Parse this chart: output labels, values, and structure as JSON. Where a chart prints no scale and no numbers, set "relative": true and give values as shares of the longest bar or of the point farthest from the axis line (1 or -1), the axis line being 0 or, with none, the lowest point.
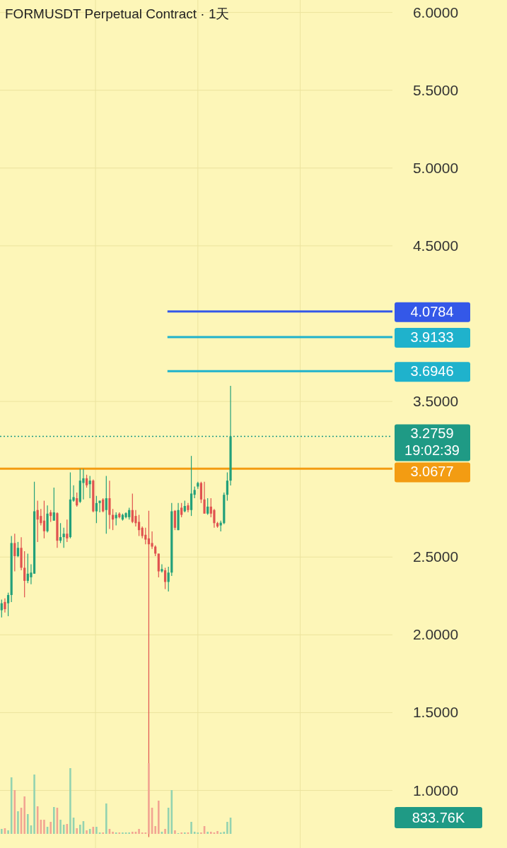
{
  "chart_data": [
    {
      "type": "candlestick",
      "title": "FORMUSDT Perpetual Contract · 1天",
      "categories": [
        null,
        null,
        null,
        null,
        null,
        null,
        null,
        null,
        null,
        null,
        null,
        null,
        null,
        null,
        null,
        null,
        null,
        null,
        null,
        null,
        null,
        null,
        null,
        null,
        null,
        null,
        null,
        null,
        null,
        null,
        null,
        null,
        null,
        null,
        null,
        null,
        null,
        null,
        null,
        null,
        null,
        null,
        null,
        null,
        null,
        null,
        null,
        null,
        null,
        null,
        null,
        null,
        null,
        null,
        null,
        null,
        null,
        null,
        null,
        null,
        null,
        null,
        null,
        null,
        null,
        null,
        null,
        null,
        null,
        null,
        null,
        null,
        null,
        null,
        null,
        null,
        null,
        null,
        null,
        null,
        null,
        null,
        null,
        null,
        null,
        null,
        null,
        null,
        null,
        null,
        null,
        null,
        null,
        null,
        null,
        null,
        null,
        null,
        null,
        null,
        null,
        null,
        null,
        null,
        null,
        null,
        null,
        null,
        null,
        null,
        null,
        null,
        null,
        null,
        null,
        null,
        null,
        null,
        null,
        null
      ],
      "ohlc": [
        [
          2.158,
          2.226,
          2.112,
          2.203
        ],
        [
          2.211,
          2.234,
          2.143,
          2.165
        ],
        [
          2.203,
          2.271,
          2.12,
          2.256
        ],
        [
          2.256,
          2.635,
          2.211,
          2.59
        ],
        [
          2.59,
          2.65,
          2.408,
          2.506
        ],
        [
          2.506,
          2.597,
          2.499,
          2.559
        ],
        [
          2.559,
          2.627,
          2.415,
          2.431
        ],
        [
          2.431,
          2.537,
          2.241,
          2.347
        ],
        [
          2.347,
          2.522,
          2.332,
          2.393
        ],
        [
          2.37,
          2.453,
          2.325,
          2.4
        ],
        [
          2.393,
          2.984,
          2.393,
          2.794
        ],
        [
          2.802,
          2.862,
          2.597,
          2.741
        ],
        [
          2.764,
          2.809,
          2.703,
          2.718
        ],
        [
          2.734,
          2.862,
          2.62,
          2.666
        ],
        [
          2.666,
          2.832,
          2.658,
          2.779
        ],
        [
          2.787,
          2.802,
          2.726,
          2.764
        ],
        [
          2.734,
          2.946,
          2.734,
          2.787
        ],
        [
          2.782,
          2.787,
          2.559,
          2.605
        ],
        [
          2.605,
          2.718,
          2.59,
          2.628
        ],
        [
          2.628,
          2.688,
          2.559,
          2.65
        ],
        [
          2.65,
          2.741,
          2.597,
          2.62
        ],
        [
          2.628,
          3.044,
          2.62,
          2.87
        ],
        [
          2.862,
          2.961,
          2.855,
          2.885
        ],
        [
          2.878,
          2.915,
          2.824,
          2.832
        ],
        [
          2.855,
          3.067,
          2.847,
          2.991
        ],
        [
          2.976,
          3.067,
          2.87,
          3.006
        ],
        [
          3.006,
          3.029,
          2.946,
          2.961
        ],
        [
          2.968,
          3.021,
          2.878,
          2.991
        ],
        [
          2.991,
          2.999,
          2.787,
          2.794
        ],
        [
          2.794,
          2.893,
          2.718,
          2.847
        ],
        [
          2.847,
          2.862,
          2.787,
          2.862
        ],
        [
          2.87,
          2.878,
          2.787,
          2.794
        ],
        [
          2.802,
          3.021,
          2.65,
          2.878
        ],
        [
          2.878,
          2.991,
          2.681,
          2.771
        ],
        [
          2.771,
          2.809,
          2.673,
          2.741
        ],
        [
          2.749,
          2.787,
          2.703,
          2.771
        ],
        [
          2.779,
          2.787,
          2.749,
          2.756
        ],
        [
          2.741,
          2.779,
          2.734,
          2.771
        ],
        [
          2.756,
          2.787,
          2.749,
          2.782
        ],
        [
          2.756,
          2.817,
          2.741,
          2.802
        ],
        [
          2.802,
          2.908,
          2.718,
          2.726
        ],
        [
          2.764,
          2.802,
          2.696,
          2.718
        ],
        [
          2.726,
          2.771,
          2.635,
          2.673
        ],
        [
          2.688,
          2.696,
          2.62,
          2.635
        ],
        [
          2.643,
          2.688,
          2.582,
          2.612
        ],
        [
          2.62,
          2.797,
          0.7,
          2.582
        ],
        [
          2.59,
          2.665,
          2.552,
          2.567
        ],
        [
          2.567,
          2.575,
          2.506,
          2.522
        ],
        [
          2.522,
          2.522,
          2.37,
          2.408
        ],
        [
          2.408,
          2.453,
          2.4,
          2.423
        ],
        [
          2.415,
          2.431,
          2.294,
          2.34
        ],
        [
          2.34,
          2.438,
          2.279,
          2.4
        ],
        [
          2.4,
          2.847,
          2.378,
          2.794
        ],
        [
          2.797,
          2.802,
          2.673,
          2.688
        ],
        [
          2.673,
          2.847,
          2.673,
          2.802
        ],
        [
          2.817,
          2.847,
          2.756,
          2.771
        ],
        [
          2.794,
          2.862,
          2.787,
          2.828
        ],
        [
          2.832,
          2.847,
          2.787,
          2.802
        ],
        [
          2.802,
          3.15,
          2.764,
          2.908
        ],
        [
          2.9,
          2.953,
          2.878,
          2.931
        ],
        [
          2.953,
          2.984,
          2.938,
          2.976
        ],
        [
          2.976,
          2.984,
          2.847,
          2.87
        ],
        [
          2.87,
          2.984,
          2.779,
          2.779
        ],
        [
          2.779,
          2.878,
          2.771,
          2.824
        ],
        [
          2.824,
          2.878,
          2.756,
          2.779
        ],
        [
          2.802,
          2.809,
          2.688,
          2.718
        ],
        [
          2.718,
          2.726,
          2.688,
          2.696
        ],
        [
          2.703,
          2.734,
          2.665,
          2.721
        ],
        [
          2.718,
          2.915,
          2.711,
          2.9
        ],
        [
          2.9,
          3.044,
          2.862,
          2.991
        ],
        [
          2.991,
          3.6,
          2.96,
          3.2759
        ],
        null,
        null,
        null,
        null,
        null,
        null,
        null,
        null,
        null,
        null,
        null,
        null,
        null,
        null,
        null,
        null,
        null,
        null,
        null,
        null,
        null,
        null,
        null,
        null,
        null,
        null,
        null,
        null,
        null,
        null,
        null,
        null,
        null,
        null,
        null,
        null,
        null,
        null,
        null,
        null,
        null,
        null,
        null,
        null,
        null,
        null,
        null,
        null,
        null
      ],
      "colors": [
        "#22a07a",
        "#e0524f",
        "#22a07a",
        "#22a07a",
        "#e0524f",
        "#22a07a",
        "#e0524f",
        "#e0524f",
        "#22a07a",
        "#22a07a",
        "#22a07a",
        "#e0524f",
        "#e0524f",
        "#e0524f",
        "#22a07a",
        "#e0524f",
        "#22a07a",
        "#e0524f",
        "#22a07a",
        "#22a07a",
        "#e0524f",
        "#22a07a",
        "#22a07a",
        "#e0524f",
        "#22a07a",
        "#22a07a",
        "#e0524f",
        "#22a07a",
        "#e0524f",
        "#22a07a",
        "#22a07a",
        "#e0524f",
        "#22a07a",
        "#e0524f",
        "#e0524f",
        "#22a07a",
        "#e0524f",
        "#22a07a",
        "#22a07a",
        "#22a07a",
        "#e0524f",
        "#e0524f",
        "#e0524f",
        "#e0524f",
        "#e0524f",
        "#e0524f",
        "#e0524f",
        "#e0524f",
        "#e0524f",
        "#22a07a",
        "#e0524f",
        "#22a07a",
        "#22a07a",
        "#e0524f",
        "#22a07a",
        "#e0524f",
        "#22a07a",
        "#e0524f",
        "#22a07a",
        "#22a07a",
        "#22a07a",
        "#e0524f",
        "#e0524f",
        "#22a07a",
        "#e0524f",
        "#e0524f",
        "#e0524f",
        "#22a07a",
        "#22a07a",
        "#22a07a",
        "#22a07a",
        null,
        null,
        null,
        null,
        null,
        null,
        null,
        null,
        null,
        null,
        null,
        null,
        null,
        null,
        null,
        null,
        null,
        null,
        null,
        null,
        null,
        null,
        null,
        null,
        null,
        null,
        null,
        null,
        null,
        null,
        null,
        null,
        null,
        null,
        null,
        null,
        null,
        null,
        null,
        null,
        null,
        null,
        null,
        null,
        null,
        null,
        null,
        null,
        null
      ],
      "ylim": [
        0.63,
        6.08
      ],
      "yticks": [
        {
          "value": 1,
          "label": "1.0000"
        },
        {
          "value": 1.5,
          "label": "1.5000"
        },
        {
          "value": 2,
          "label": "2.0000"
        },
        {
          "value": 2.5,
          "label": "2.5000"
        },
        {
          "value": 3.5,
          "label": "3.5000"
        },
        {
          "value": 4.5,
          "label": "4.5000"
        },
        {
          "value": 5,
          "label": "5.0000"
        },
        {
          "value": 5.5,
          "label": "5.5000"
        },
        {
          "value": 6,
          "label": "6.0000"
        }
      ],
      "grid": true,
      "ref_lines": [
        {
          "axis": "y",
          "value": 4.0784,
          "label": "4.0784",
          "color": "#3458e8",
          "line_style": "solid"
        },
        {
          "axis": "y",
          "value": 3.9133,
          "label": "3.9133",
          "color": "#1fb2cc",
          "line_style": "solid"
        },
        {
          "axis": "y",
          "value": 3.6946,
          "label": "3.6946",
          "color": "#1fb2cc",
          "line_style": "solid"
        },
        {
          "axis": "y",
          "value": 3.2759,
          "label": "3.2759\n19:02:39",
          "color": "#1f9a85",
          "line_style": "dotted"
        },
        {
          "axis": "y",
          "value": 3.0677,
          "label": "3.0677",
          "color": "#f39c12",
          "line_style": "solid"
        }
      ]
    },
    {
      "type": "bar",
      "relative": true,
      "categories": [
        null,
        null,
        null,
        null,
        null,
        null,
        null,
        null,
        null,
        null,
        null,
        null,
        null,
        null,
        null,
        null,
        null,
        null,
        null,
        null,
        null,
        null,
        null,
        null,
        null,
        null,
        null,
        null,
        null,
        null,
        null,
        null,
        null,
        null,
        null,
        null,
        null,
        null,
        null,
        null,
        null,
        null,
        null,
        null,
        null,
        null,
        null,
        null,
        null,
        null,
        null,
        null,
        null,
        null,
        null,
        null,
        null,
        null,
        null,
        null,
        null,
        null,
        null,
        null,
        null,
        null,
        null,
        null,
        null,
        null,
        null,
        null,
        null,
        null,
        null,
        null,
        null,
        null,
        null,
        null,
        null,
        null,
        null,
        null,
        null,
        null,
        null,
        null,
        null,
        null,
        null,
        null,
        null,
        null,
        null,
        null,
        null,
        null,
        null,
        null,
        null,
        null,
        null,
        null,
        null,
        null,
        null,
        null,
        null,
        null,
        null,
        null,
        null,
        null,
        null,
        null,
        null,
        null,
        null,
        null
      ],
      "values": [
        0.07,
        0.08,
        0.05,
        0.8,
        0.62,
        0.32,
        0.37,
        0.53,
        0.28,
        0.12,
        0.84,
        0.39,
        0.2,
        0.2,
        0.1,
        0.17,
        0.38,
        0.37,
        0.2,
        0.13,
        0.14,
        0.93,
        0.23,
        0.08,
        0.13,
        0.18,
        0.05,
        0.07,
        0.1,
        0.1,
        0.02,
        0.02,
        0.43,
        0.07,
        0.03,
        0.02,
        0.02,
        0.02,
        0.02,
        0.02,
        0.03,
        0.03,
        0.07,
        0.02,
        0.02,
        1,
        0.37,
        0.11,
        0.47,
        0.03,
        0.07,
        0.37,
        0.62,
        0.05,
        0.01,
        0.02,
        0.02,
        0.02,
        0.17,
        0.03,
        0.02,
        0.02,
        0.11,
        0.03,
        0.03,
        0.02,
        0.04,
        0.02,
        0.03,
        0.17,
        0.23,
        null,
        null,
        null,
        null,
        null,
        null,
        null,
        null,
        null,
        null,
        null,
        null,
        null,
        null,
        null,
        null,
        null,
        null,
        null,
        null,
        null,
        null,
        null,
        null,
        null,
        null,
        null,
        null,
        null,
        null,
        null,
        null,
        null,
        null,
        null,
        null,
        null,
        null,
        null,
        null,
        null,
        null,
        null,
        null,
        null,
        null,
        null,
        null,
        null
      ],
      "colors": [
        "#93d3b0",
        "#f2a592",
        "#93d3b0",
        "#93d3b0",
        "#f2a592",
        "#93d3b0",
        "#f2a592",
        "#f2a592",
        "#93d3b0",
        "#93d3b0",
        "#93d3b0",
        "#f2a592",
        "#f2a592",
        "#f2a592",
        "#93d3b0",
        "#f2a592",
        "#93d3b0",
        "#f2a592",
        "#93d3b0",
        "#93d3b0",
        "#f2a592",
        "#93d3b0",
        "#93d3b0",
        "#f2a592",
        "#93d3b0",
        "#93d3b0",
        "#f2a592",
        "#93d3b0",
        "#f2a592",
        "#93d3b0",
        "#93d3b0",
        "#f2a592",
        "#93d3b0",
        "#f2a592",
        "#f2a592",
        "#93d3b0",
        "#f2a592",
        "#93d3b0",
        "#93d3b0",
        "#93d3b0",
        "#f2a592",
        "#f2a592",
        "#f2a592",
        "#f2a592",
        "#f2a592",
        "#f2a592",
        "#f2a592",
        "#f2a592",
        "#f2a592",
        "#93d3b0",
        "#f2a592",
        "#93d3b0",
        "#93d3b0",
        "#f2a592",
        "#93d3b0",
        "#f2a592",
        "#93d3b0",
        "#f2a592",
        "#93d3b0",
        "#93d3b0",
        "#93d3b0",
        "#f2a592",
        "#f2a592",
        "#93d3b0",
        "#f2a592",
        "#f2a592",
        "#f2a592",
        "#93d3b0",
        "#93d3b0",
        "#93d3b0",
        "#93d3b0",
        null,
        null,
        null,
        null,
        null,
        null,
        null,
        null,
        null,
        null,
        null,
        null,
        null,
        null,
        null,
        null,
        null,
        null,
        null,
        null,
        null,
        null,
        null,
        null,
        null,
        null,
        null,
        null,
        null,
        null,
        null,
        null,
        null,
        null,
        null,
        null,
        null,
        null,
        null,
        null,
        null,
        null,
        null,
        null,
        null,
        null,
        null,
        null,
        null
      ],
      "annotations": [
        "833.76K"
      ]
    }
  ]
}
